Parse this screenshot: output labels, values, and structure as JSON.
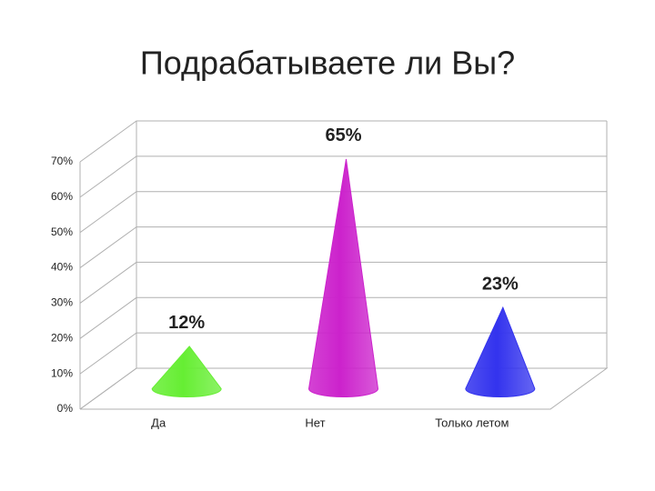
{
  "chart_data": {
    "type": "cone3d",
    "title": "Подрабатываете ли Вы?",
    "categories": [
      "Да",
      "Нет",
      "Только летом"
    ],
    "values": [
      12,
      65,
      23
    ],
    "value_labels": [
      "12%",
      "65%",
      "23%"
    ],
    "colors": [
      "#66ee33",
      "#cc22cc",
      "#3333ee"
    ],
    "ylim": [
      0,
      70
    ],
    "yticks": [
      {
        "value": 0,
        "label": "0%"
      },
      {
        "value": 10,
        "label": "10%"
      },
      {
        "value": 20,
        "label": "20%"
      },
      {
        "value": 30,
        "label": "30%"
      },
      {
        "value": 40,
        "label": "40%"
      },
      {
        "value": 50,
        "label": "50%"
      },
      {
        "value": 60,
        "label": "60%"
      },
      {
        "value": 70,
        "label": "70%"
      }
    ],
    "grid": true
  }
}
